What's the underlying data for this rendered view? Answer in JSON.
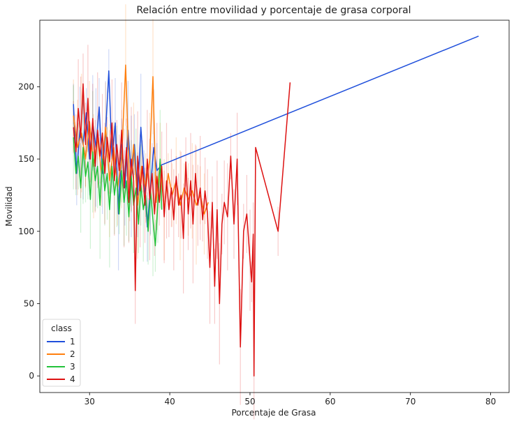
{
  "chart_data": {
    "type": "line",
    "title": "Relación entre movilidad y porcentaje de grasa corporal",
    "xlabel": "Porcentaje de Grasa",
    "ylabel": "Movilidad",
    "xlim": [
      23.8,
      82.3
    ],
    "ylim": [
      -11.5,
      246
    ],
    "xticks": [
      30,
      40,
      50,
      60,
      70,
      80
    ],
    "yticks": [
      0,
      50,
      100,
      150,
      200
    ],
    "grid": false,
    "legend": {
      "title": "class",
      "placement": "lower-left"
    },
    "series": [
      {
        "name": "1",
        "color": "#1f4fdb",
        "points": [
          [
            28.0,
            188
          ],
          [
            28.4,
            140
          ],
          [
            28.8,
            170
          ],
          [
            29.2,
            160
          ],
          [
            29.6,
            182
          ],
          [
            30.0,
            150
          ],
          [
            30.4,
            175
          ],
          [
            30.8,
            158
          ],
          [
            31.2,
            186
          ],
          [
            31.6,
            140
          ],
          [
            32.0,
            168
          ],
          [
            32.4,
            211
          ],
          [
            32.8,
            150
          ],
          [
            33.2,
            175
          ],
          [
            33.6,
            112
          ],
          [
            34.0,
            160
          ],
          [
            34.4,
            130
          ],
          [
            34.8,
            170
          ],
          [
            35.2,
            138
          ],
          [
            35.6,
            160
          ],
          [
            36.0,
            125
          ],
          [
            36.4,
            172
          ],
          [
            36.8,
            140
          ],
          [
            37.2,
            103
          ],
          [
            37.6,
            130
          ],
          [
            38.0,
            158
          ],
          [
            38.4,
            142
          ],
          [
            39.0,
            146
          ],
          [
            78.5,
            235
          ]
        ]
      },
      {
        "name": "2",
        "color": "#ff7f0e",
        "points": [
          [
            28.0,
            180
          ],
          [
            28.5,
            158
          ],
          [
            29.0,
            168
          ],
          [
            29.5,
            150
          ],
          [
            30.0,
            176
          ],
          [
            30.5,
            145
          ],
          [
            31.0,
            165
          ],
          [
            31.5,
            140
          ],
          [
            32.0,
            172
          ],
          [
            32.5,
            135
          ],
          [
            33.0,
            158
          ],
          [
            33.5,
            130
          ],
          [
            34.0,
            150
          ],
          [
            34.5,
            215
          ],
          [
            35.0,
            128
          ],
          [
            35.5,
            160
          ],
          [
            36.0,
            118
          ],
          [
            36.5,
            145
          ],
          [
            37.0,
            130
          ],
          [
            37.5,
            150
          ],
          [
            37.9,
            207
          ],
          [
            38.3,
            120
          ],
          [
            38.8,
            148
          ],
          [
            39.3,
            115
          ],
          [
            39.8,
            140
          ],
          [
            40.3,
            125
          ],
          [
            40.8,
            135
          ],
          [
            41.3,
            118
          ],
          [
            41.8,
            130
          ],
          [
            42.3,
            122
          ],
          [
            42.8,
            128
          ],
          [
            43.3,
            118
          ],
          [
            43.8,
            125
          ],
          [
            44.3,
            112
          ],
          [
            44.8,
            120
          ]
        ]
      },
      {
        "name": "3",
        "color": "#22c23a",
        "points": [
          [
            28.0,
            165
          ],
          [
            28.3,
            140
          ],
          [
            28.6,
            152
          ],
          [
            28.9,
            130
          ],
          [
            29.2,
            158
          ],
          [
            29.5,
            138
          ],
          [
            29.8,
            148
          ],
          [
            30.1,
            122
          ],
          [
            30.4,
            155
          ],
          [
            30.7,
            135
          ],
          [
            31.0,
            145
          ],
          [
            31.3,
            118
          ],
          [
            31.6,
            150
          ],
          [
            31.9,
            128
          ],
          [
            32.2,
            140
          ],
          [
            32.5,
            115
          ],
          [
            32.8,
            145
          ],
          [
            33.1,
            125
          ],
          [
            33.4,
            138
          ],
          [
            33.7,
            112
          ],
          [
            34.0,
            142
          ],
          [
            34.3,
            120
          ],
          [
            34.6,
            135
          ],
          [
            34.9,
            110
          ],
          [
            35.2,
            138
          ],
          [
            35.5,
            118
          ],
          [
            35.8,
            130
          ],
          [
            36.1,
            105
          ],
          [
            36.4,
            132
          ],
          [
            36.7,
            115
          ],
          [
            37.0,
            125
          ],
          [
            37.3,
            100
          ],
          [
            37.6,
            128
          ],
          [
            37.9,
            108
          ],
          [
            38.2,
            90
          ],
          [
            38.5,
            118
          ],
          [
            38.8,
            150
          ],
          [
            39.0,
            115
          ]
        ]
      },
      {
        "name": "4",
        "color": "#dd1111",
        "points": [
          [
            28.0,
            172
          ],
          [
            28.3,
            155
          ],
          [
            28.6,
            185
          ],
          [
            28.9,
            165
          ],
          [
            29.2,
            202
          ],
          [
            29.5,
            160
          ],
          [
            29.8,
            192
          ],
          [
            30.1,
            150
          ],
          [
            30.4,
            178
          ],
          [
            30.7,
            145
          ],
          [
            31.0,
            170
          ],
          [
            31.3,
            152
          ],
          [
            31.6,
            168
          ],
          [
            31.9,
            140
          ],
          [
            32.2,
            165
          ],
          [
            32.5,
            148
          ],
          [
            32.8,
            175
          ],
          [
            33.1,
            135
          ],
          [
            33.4,
            160
          ],
          [
            33.7,
            142
          ],
          [
            34.0,
            170
          ],
          [
            34.3,
            130
          ],
          [
            34.6,
            158
          ],
          [
            34.9,
            120
          ],
          [
            35.2,
            150
          ],
          [
            35.5,
            135
          ],
          [
            35.7,
            59
          ],
          [
            36.0,
            152
          ],
          [
            36.3,
            128
          ],
          [
            36.6,
            145
          ],
          [
            36.9,
            118
          ],
          [
            37.2,
            150
          ],
          [
            37.5,
            122
          ],
          [
            37.8,
            140
          ],
          [
            38.1,
            112
          ],
          [
            38.4,
            138
          ],
          [
            38.7,
            120
          ],
          [
            39.0,
            145
          ],
          [
            39.3,
            110
          ],
          [
            39.6,
            135
          ],
          [
            39.9,
            115
          ],
          [
            40.2,
            130
          ],
          [
            40.5,
            108
          ],
          [
            40.8,
            138
          ],
          [
            41.1,
            118
          ],
          [
            41.4,
            125
          ],
          [
            41.7,
            95
          ],
          [
            42.0,
            148
          ],
          [
            42.3,
            112
          ],
          [
            42.6,
            135
          ],
          [
            42.9,
            105
          ],
          [
            43.2,
            140
          ],
          [
            43.5,
            118
          ],
          [
            43.8,
            130
          ],
          [
            44.1,
            108
          ],
          [
            44.4,
            128
          ],
          [
            44.7,
            112
          ],
          [
            45.0,
            75
          ],
          [
            45.3,
            120
          ],
          [
            45.6,
            62
          ],
          [
            45.9,
            115
          ],
          [
            46.2,
            50
          ],
          [
            46.5,
            105
          ],
          [
            46.8,
            120
          ],
          [
            47.2,
            110
          ],
          [
            47.6,
            152
          ],
          [
            48.0,
            105
          ],
          [
            48.4,
            150
          ],
          [
            48.8,
            20
          ],
          [
            49.2,
            100
          ],
          [
            49.6,
            112
          ],
          [
            50.0,
            80
          ],
          [
            50.2,
            65
          ],
          [
            50.4,
            98
          ],
          [
            50.5,
            0
          ],
          [
            50.7,
            158
          ],
          [
            53.5,
            100
          ],
          [
            55.0,
            203
          ]
        ]
      }
    ]
  }
}
